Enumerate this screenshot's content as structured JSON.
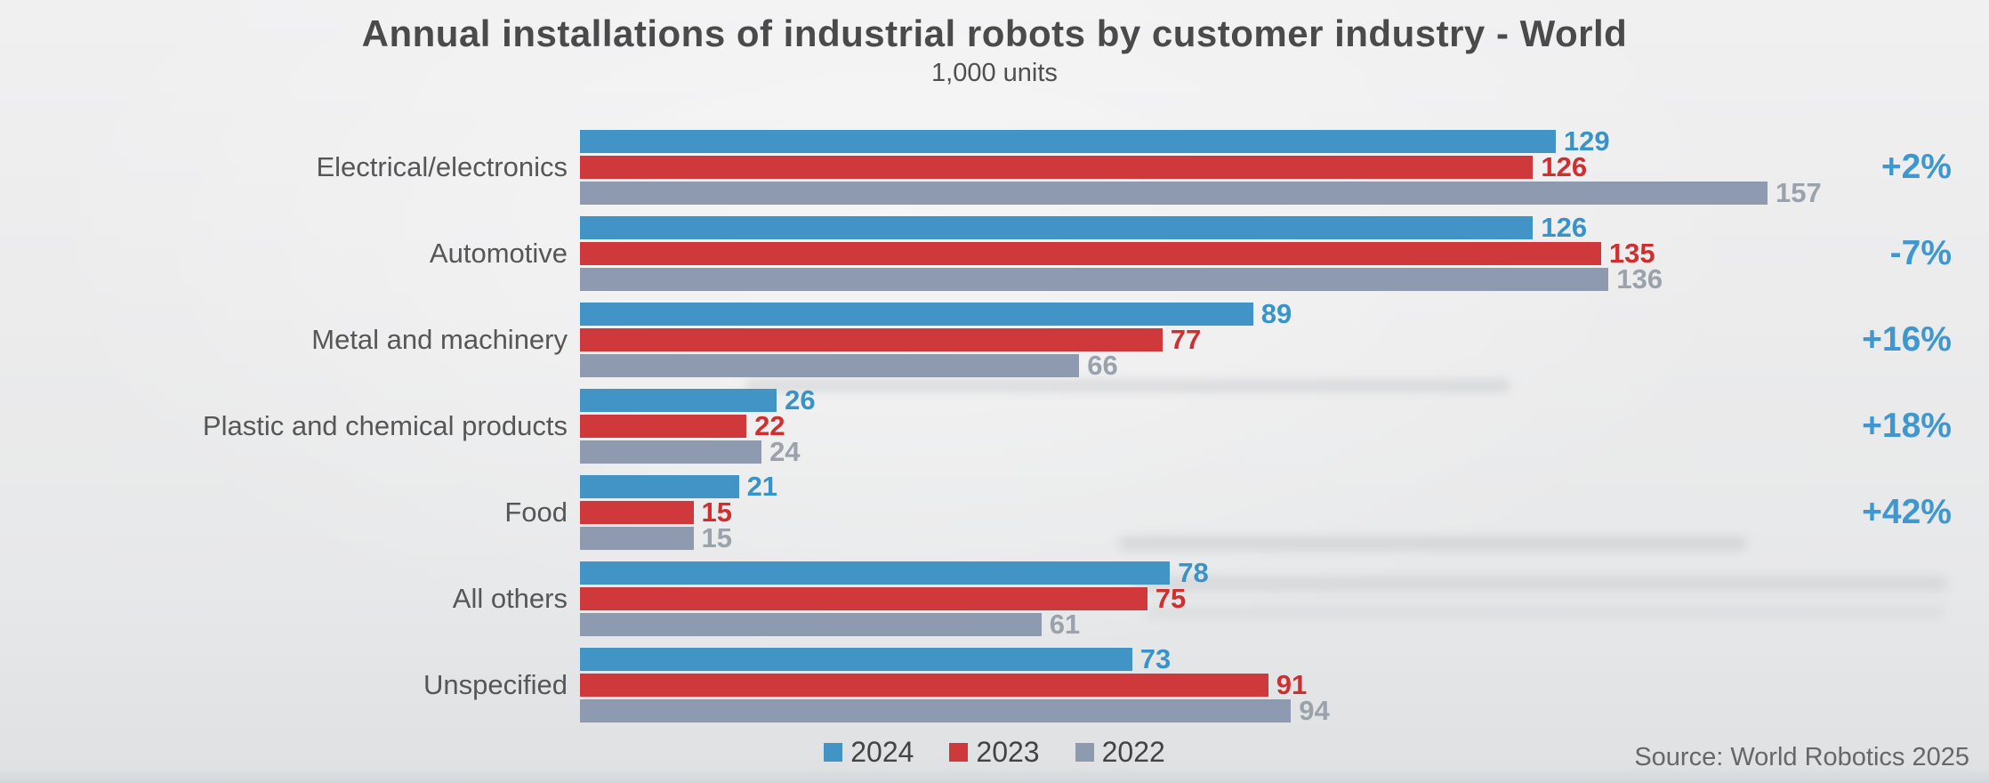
{
  "title": "Annual installations of industrial robots by customer industry - World",
  "subtitle": "1,000 units",
  "source": "Source: World Robotics 2025",
  "chart_data": {
    "type": "bar",
    "orientation": "horizontal",
    "title": "Annual installations of industrial robots by customer industry - World",
    "unit_label": "1,000 units",
    "categories": [
      "Electrical/electronics",
      "Automotive",
      "Metal and machinery",
      "Plastic and chemical products",
      "Food",
      "All others",
      "Unspecified"
    ],
    "series": [
      {
        "name": "2024",
        "color": "#4293c6",
        "label_color": "#3793c8",
        "values": [
          129,
          126,
          89,
          26,
          21,
          78,
          73
        ]
      },
      {
        "name": "2023",
        "color": "#cf393b",
        "label_color": "#d02f30",
        "values": [
          126,
          135,
          77,
          22,
          15,
          75,
          91
        ]
      },
      {
        "name": "2022",
        "color": "#8e9ab0",
        "label_color": "#9aa2ac",
        "values": [
          157,
          136,
          66,
          24,
          15,
          61,
          94
        ]
      }
    ],
    "yoy_change": [
      "+2%",
      "-7%",
      "+16%",
      "+18%",
      "+42%",
      "",
      ""
    ],
    "change_color": "#3e97cf",
    "axis_max": 157,
    "grid": false,
    "legend_position": "bottom",
    "legend_entries": [
      "2024",
      "2023",
      "2022"
    ],
    "source": "Source: World Robotics 2025"
  }
}
